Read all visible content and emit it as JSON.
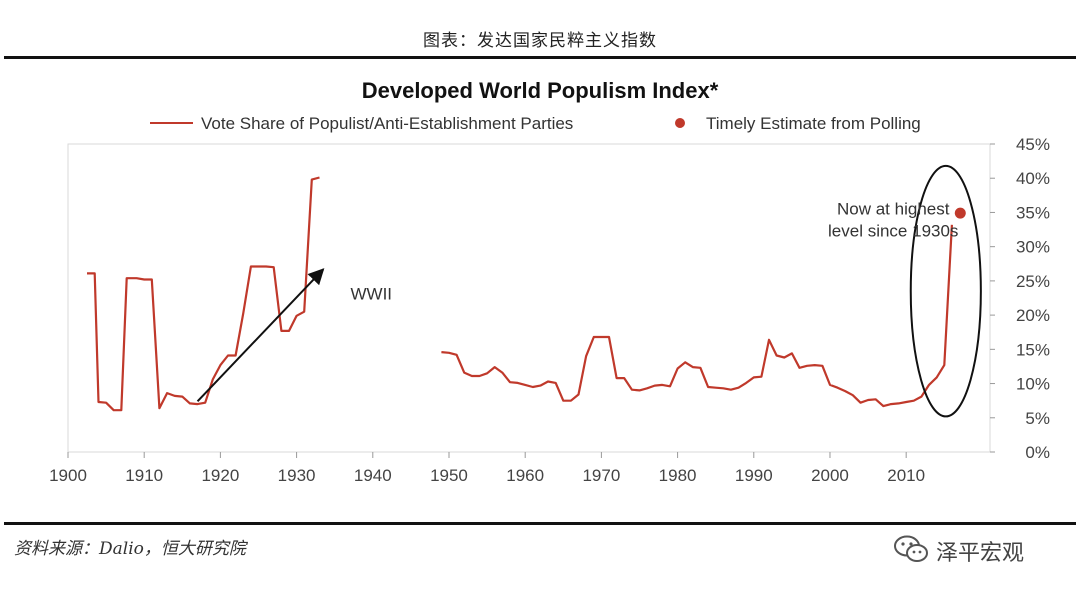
{
  "page_title": "图表：发达国家民粹主义指数",
  "source_note": "资料来源：Dalio，恒大研究院",
  "watermark": {
    "text": "泽平宏观",
    "icon": "wechat-icon"
  },
  "chart_data": {
    "type": "line",
    "title": "Developed World Populism Index*",
    "legend": {
      "placement": "top",
      "entries": [
        {
          "label": "Vote Share of Populist/Anti-Establishment Parties",
          "marker": "line",
          "color": "#c0392b"
        },
        {
          "label": "Timely Estimate from Polling",
          "marker": "dot",
          "color": "#c0392b"
        }
      ]
    },
    "xlabel": "",
    "ylabel": "",
    "xlim": [
      1900,
      2021
    ],
    "ylim": [
      0,
      45
    ],
    "x_ticks": [
      1900,
      1910,
      1920,
      1930,
      1940,
      1950,
      1960,
      1970,
      1980,
      1990,
      2000,
      2010
    ],
    "y_ticks": [
      0,
      5,
      10,
      15,
      20,
      25,
      30,
      35,
      40,
      45
    ],
    "y_tick_labels": [
      "0%",
      "5%",
      "10%",
      "15%",
      "20%",
      "25%",
      "30%",
      "35%",
      "40%",
      "45%"
    ],
    "grid": false,
    "wwii_gap": [
      1934,
      1949
    ],
    "series": [
      {
        "name": "Vote Share of Populist/Anti-Establishment Parties",
        "color": "#c0392b",
        "segments": [
          [
            [
              1902.5,
              26.1
            ],
            [
              1903.5,
              26.1
            ],
            [
              1904,
              7.3
            ],
            [
              1905,
              7.2
            ],
            [
              1906,
              6.1
            ],
            [
              1907,
              6.1
            ],
            [
              1907.7,
              25.4
            ],
            [
              1909,
              25.4
            ],
            [
              1910,
              25.2
            ],
            [
              1911,
              25.2
            ],
            [
              1912,
              6.4
            ],
            [
              1913,
              8.6
            ],
            [
              1914,
              8.2
            ],
            [
              1915,
              8.1
            ],
            [
              1916,
              7.1
            ],
            [
              1917,
              7.0
            ],
            [
              1918,
              7.2
            ],
            [
              1919,
              10.6
            ],
            [
              1920,
              12.7
            ],
            [
              1921,
              14.1
            ],
            [
              1922,
              14.1
            ],
            [
              1923,
              20.3
            ],
            [
              1924,
              27.1
            ],
            [
              1926,
              27.1
            ],
            [
              1927,
              27.0
            ],
            [
              1928,
              17.7
            ],
            [
              1929,
              17.7
            ],
            [
              1930,
              19.9
            ],
            [
              1931,
              20.5
            ],
            [
              1932,
              39.8
            ],
            [
              1933,
              40.1
            ]
          ],
          [
            [
              1949,
              14.6
            ],
            [
              1950,
              14.5
            ],
            [
              1951,
              14.2
            ],
            [
              1952,
              11.6
            ],
            [
              1953,
              11.1
            ],
            [
              1954,
              11.1
            ],
            [
              1955,
              11.5
            ],
            [
              1956,
              12.4
            ],
            [
              1957,
              11.6
            ],
            [
              1958,
              10.2
            ],
            [
              1959,
              10.1
            ],
            [
              1960,
              9.8
            ],
            [
              1961,
              9.5
            ],
            [
              1962,
              9.7
            ],
            [
              1963,
              10.3
            ],
            [
              1964,
              10.1
            ],
            [
              1965,
              7.5
            ],
            [
              1966,
              7.5
            ],
            [
              1967,
              8.4
            ],
            [
              1968,
              14.0
            ],
            [
              1969,
              16.8
            ],
            [
              1970,
              16.8
            ],
            [
              1971,
              16.8
            ],
            [
              1972,
              10.8
            ],
            [
              1973,
              10.8
            ],
            [
              1974,
              9.1
            ],
            [
              1975,
              9.0
            ],
            [
              1976,
              9.3
            ],
            [
              1977,
              9.7
            ],
            [
              1978,
              9.8
            ],
            [
              1979,
              9.6
            ],
            [
              1980,
              12.2
            ],
            [
              1981,
              13.1
            ],
            [
              1982,
              12.4
            ],
            [
              1983,
              12.3
            ],
            [
              1984,
              9.5
            ],
            [
              1985,
              9.4
            ],
            [
              1986,
              9.3
            ],
            [
              1987,
              9.1
            ],
            [
              1988,
              9.4
            ],
            [
              1989,
              10.1
            ],
            [
              1990,
              10.9
            ],
            [
              1991,
              11.0
            ],
            [
              1992,
              16.4
            ],
            [
              1993,
              14.1
            ],
            [
              1994,
              13.8
            ],
            [
              1995,
              14.4
            ],
            [
              1996,
              12.3
            ],
            [
              1997,
              12.6
            ],
            [
              1998,
              12.7
            ],
            [
              1999,
              12.6
            ],
            [
              2000,
              9.8
            ],
            [
              2001,
              9.4
            ],
            [
              2002,
              8.9
            ],
            [
              2003,
              8.3
            ],
            [
              2004,
              7.2
            ],
            [
              2005,
              7.6
            ],
            [
              2006,
              7.7
            ],
            [
              2007,
              6.7
            ],
            [
              2008,
              7.0
            ],
            [
              2009,
              7.1
            ],
            [
              2010,
              7.3
            ],
            [
              2011,
              7.5
            ],
            [
              2012,
              8.1
            ],
            [
              2013,
              9.8
            ],
            [
              2014,
              10.9
            ],
            [
              2015,
              12.7
            ],
            [
              2016,
              33.2
            ]
          ]
        ]
      },
      {
        "name": "Timely Estimate from Polling",
        "color": "#c0392b",
        "points": [
          [
            2017.1,
            34.9
          ]
        ]
      }
    ],
    "annotations": [
      {
        "text": "WWII",
        "x": 1939.8,
        "y": 22.3
      },
      {
        "lines": [
          "Now at highest",
          "level since 1930s"
        ],
        "x": 2008.3,
        "y": 34.7
      }
    ],
    "trend_arrow": {
      "from": [
        1917,
        7.4
      ],
      "to": [
        1933.5,
        26.7
      ],
      "color": "#111111"
    },
    "highlight_ellipse": {
      "cx": 2015.2,
      "cy": 23.5,
      "rx": 4.6,
      "ry": 18.3,
      "color": "#111111"
    }
  }
}
